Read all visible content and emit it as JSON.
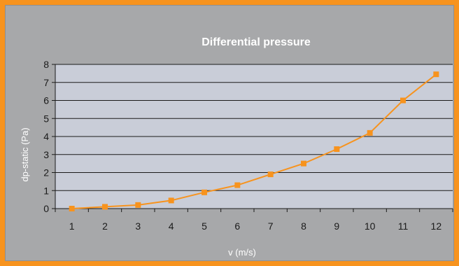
{
  "chart_data": {
    "type": "line",
    "title": "Differential pressure",
    "xlabel": "v (m/s)",
    "ylabel": "dp-static (Pa)",
    "categories": [
      "1",
      "2",
      "3",
      "4",
      "5",
      "6",
      "7",
      "8",
      "9",
      "10",
      "11",
      "12"
    ],
    "y_ticks": [
      "0",
      "1",
      "2",
      "3",
      "4",
      "5",
      "6",
      "7",
      "8"
    ],
    "ylim": [
      0,
      8
    ],
    "grid": true,
    "legend": "none",
    "series": [
      {
        "values": [
          0.0,
          0.1,
          0.2,
          0.45,
          0.9,
          1.3,
          1.9,
          2.5,
          3.3,
          4.2,
          6.0,
          7.45
        ],
        "color": "#F7931E"
      }
    ],
    "colors": {
      "background": "#F7931E",
      "panel": "#A7A8AA",
      "plot_area": "#C9CDD8",
      "gridline": "#1a1a1a"
    }
  }
}
